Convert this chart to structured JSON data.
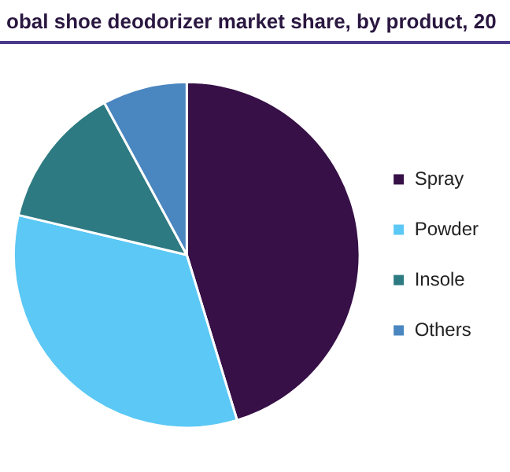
{
  "chart_data": {
    "type": "pie",
    "title": "obal shoe deodorizer market share, by product, 20",
    "categories": [
      "Spray",
      "Powder",
      "Insole",
      "Others"
    ],
    "values": [
      45.3,
      33.4,
      13.4,
      7.9
    ],
    "colors": [
      "#361046",
      "#5bc8f5",
      "#2d7a82",
      "#4a86c0"
    ],
    "legend": "right"
  }
}
